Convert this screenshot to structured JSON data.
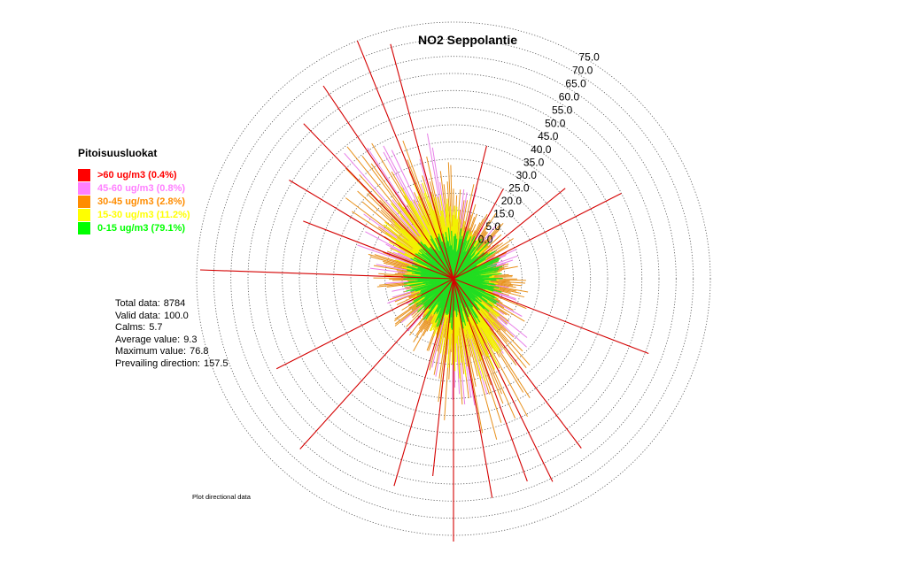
{
  "chart_data": {
    "type": "polar-bar",
    "title": "NO2 Seppolantie",
    "radial_ticks": [
      "0.0",
      "5.0",
      "15.0",
      "20.0",
      "25.0",
      "30.0",
      "35.0",
      "40.0",
      "45.0",
      "50.0",
      "55.0",
      "60.0",
      "65.0",
      "70.0",
      "75.0"
    ],
    "rmax": 75,
    "legend": {
      "title": "Pitoisuusluokat",
      "placement": "left",
      "items": [
        {
          "label": ">60 ug/m3 (0.4%)",
          "color": "#ff0000"
        },
        {
          "label": "45-60 ug/m3 (0.8%)",
          "color": "#ff7fff"
        },
        {
          "label": "30-45 ug/m3 (2.8%)",
          "color": "#ff8c00"
        },
        {
          "label": "15-30 ug/m3 (11.2%)",
          "color": "#ffff00"
        },
        {
          "label": "0-15 ug/m3 (79.1%)",
          "color": "#00ff00"
        }
      ]
    },
    "class_colors": {
      "red": "#d40000",
      "pink": "#e87ee8",
      "orange": "#e8901a",
      "yellow": "#f2f200",
      "green": "#22dd22"
    },
    "long_spokes": [
      {
        "dir": 338,
        "value": 75
      },
      {
        "dir": 345,
        "value": 71
      },
      {
        "dir": 326,
        "value": 68
      },
      {
        "dir": 316,
        "value": 63
      },
      {
        "dir": 301,
        "value": 56
      },
      {
        "dir": 291,
        "value": 47
      },
      {
        "dir": 272,
        "value": 74
      },
      {
        "dir": 243,
        "value": 58
      },
      {
        "dir": 222,
        "value": 67
      },
      {
        "dir": 196,
        "value": 63
      },
      {
        "dir": 186,
        "value": 58
      },
      {
        "dir": 180,
        "value": 76.8
      },
      {
        "dir": 170,
        "value": 65
      },
      {
        "dir": 160,
        "value": 63
      },
      {
        "dir": 154,
        "value": 66
      },
      {
        "dir": 143,
        "value": 62
      },
      {
        "dir": 111,
        "value": 61
      },
      {
        "dir": 63,
        "value": 55
      },
      {
        "dir": 51,
        "value": 42
      },
      {
        "dir": 29,
        "value": 30
      },
      {
        "dir": 14,
        "value": 40
      }
    ]
  },
  "stats": [
    {
      "label": "Total data:",
      "value": "8784"
    },
    {
      "label": "Valid data:",
      "value": "100.0"
    },
    {
      "label": "Calms:",
      "value": "5.7"
    },
    {
      "label": "Average value:",
      "value": "9.3"
    },
    {
      "label": "Maximum value:",
      "value": "76.8"
    },
    {
      "label": "Prevailing direction:",
      "value": "157.5"
    }
  ],
  "footnote": "Plot directional data"
}
